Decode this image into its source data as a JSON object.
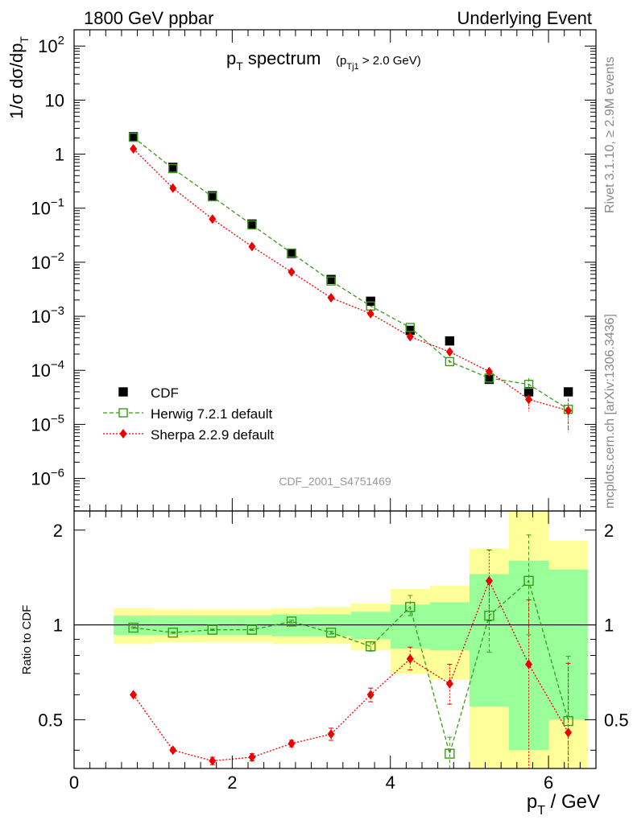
{
  "header": {
    "left": "1800 GeV ppbar",
    "right": "Underlying Event"
  },
  "side_labels": {
    "rivet": "Rivet 3.1.10, ≥ 2.9M events",
    "mcplots": "mcplots.cern.ch [arXiv:1306.3436]"
  },
  "colors": {
    "cdf": "#000000",
    "herwig": "#3a9a1a",
    "sherpa": "#ee0000",
    "band_inner": "#99ff99",
    "band_outer": "#ffff99"
  },
  "chart_data": [
    {
      "type": "scatter",
      "title_main": "p",
      "title_main_sub": "T",
      "title_main_rest": " spectrum",
      "title_cut_open": "(p",
      "title_cut_sub": "Tj1",
      "title_cut_rest": " > 2.0 GeV)",
      "ylabel_main": "1/σ dσ/dp",
      "ylabel_sub": "T",
      "yscale": "log",
      "xlim": [
        0,
        6.6
      ],
      "ylim": [
        2.5e-07,
        200
      ],
      "y_ticks": [
        {
          "value": 1e-06,
          "base": "10",
          "exp": "−6"
        },
        {
          "value": 1e-05,
          "base": "10",
          "exp": "−5"
        },
        {
          "value": 0.0001,
          "base": "10",
          "exp": "−4"
        },
        {
          "value": 0.001,
          "base": "10",
          "exp": "−3"
        },
        {
          "value": 0.01,
          "base": "10",
          "exp": "−2"
        },
        {
          "value": 0.1,
          "base": "10",
          "exp": "−1"
        },
        {
          "value": 1,
          "base": "1",
          "exp": ""
        },
        {
          "value": 10,
          "base": "10",
          "exp": ""
        },
        {
          "value": 100,
          "base": "10",
          "exp": "2"
        }
      ],
      "watermark": "CDF_2001_S4751469",
      "legend_position": "lower-left",
      "series": [
        {
          "name": "CDF",
          "x": [
            0.75,
            1.25,
            1.75,
            2.25,
            2.75,
            3.25,
            3.75,
            4.25,
            4.75,
            5.25,
            5.75,
            6.25
          ],
          "y": [
            2.1,
            0.57,
            0.17,
            0.051,
            0.0145,
            0.0048,
            0.0019,
            0.00055,
            0.00035,
            6.8e-05,
            4e-05,
            4e-05
          ]
        },
        {
          "name": "Herwig 7.2.1 default",
          "x": [
            0.75,
            1.25,
            1.75,
            2.25,
            2.75,
            3.25,
            3.75,
            4.25,
            4.75,
            5.25,
            5.75,
            6.25
          ],
          "y": [
            2.05,
            0.54,
            0.163,
            0.049,
            0.0148,
            0.0045,
            0.00155,
            0.00062,
            0.000145,
            7.2e-05,
            5.5e-05,
            1.9e-05
          ],
          "err_rel": [
            0.01,
            0.01,
            0.01,
            0.01,
            0.02,
            0.02,
            0.03,
            0.05,
            0.08,
            0.15,
            0.3,
            0.6
          ]
        },
        {
          "name": "Sherpa 2.2.9 default",
          "x": [
            0.75,
            1.25,
            1.75,
            2.25,
            2.75,
            3.25,
            3.75,
            4.25,
            4.75,
            5.25,
            5.75,
            6.25
          ],
          "y": [
            1.25,
            0.235,
            0.063,
            0.0195,
            0.0066,
            0.0022,
            0.00112,
            0.00042,
            0.00022,
            9.5e-05,
            2.9e-05,
            1.8e-05
          ],
          "err_rel": [
            0.01,
            0.01,
            0.01,
            0.02,
            0.02,
            0.03,
            0.04,
            0.06,
            0.12,
            0.2,
            0.4,
            0.6
          ]
        }
      ]
    },
    {
      "type": "scatter",
      "ylabel": "Ratio to CDF",
      "xlabel_main": "p",
      "xlabel_sub": "T",
      "xlabel_rest": " / GeV",
      "xlim": [
        0,
        6.6
      ],
      "ylim": [
        0.35,
        2.3
      ],
      "x_ticks": [
        "0",
        "2",
        "4",
        "6"
      ],
      "x_tick_values": [
        0,
        2,
        4,
        6
      ],
      "y_ticks": [
        "0.5",
        "1",
        "2"
      ],
      "y_tick_values": [
        0.5,
        1,
        2
      ],
      "bands": [
        {
          "x0": 0.5,
          "x1": 1.0,
          "inner": [
            0.93,
            1.07
          ],
          "outer": [
            0.87,
            1.13
          ]
        },
        {
          "x0": 1.0,
          "x1": 1.5,
          "inner": [
            0.93,
            1.07
          ],
          "outer": [
            0.88,
            1.12
          ]
        },
        {
          "x0": 1.5,
          "x1": 2.0,
          "inner": [
            0.93,
            1.07
          ],
          "outer": [
            0.88,
            1.12
          ]
        },
        {
          "x0": 2.0,
          "x1": 2.5,
          "inner": [
            0.93,
            1.07
          ],
          "outer": [
            0.88,
            1.12
          ]
        },
        {
          "x0": 2.5,
          "x1": 3.0,
          "inner": [
            0.92,
            1.08
          ],
          "outer": [
            0.87,
            1.13
          ]
        },
        {
          "x0": 3.0,
          "x1": 3.5,
          "inner": [
            0.92,
            1.08
          ],
          "outer": [
            0.87,
            1.14
          ]
        },
        {
          "x0": 3.5,
          "x1": 4.0,
          "inner": [
            0.9,
            1.1
          ],
          "outer": [
            0.83,
            1.17
          ]
        },
        {
          "x0": 4.0,
          "x1": 4.5,
          "inner": [
            0.84,
            1.16
          ],
          "outer": [
            0.7,
            1.3
          ]
        },
        {
          "x0": 4.5,
          "x1": 5.0,
          "inner": [
            0.83,
            1.18
          ],
          "outer": [
            0.67,
            1.33
          ]
        },
        {
          "x0": 5.0,
          "x1": 5.5,
          "inner": [
            0.55,
            1.45
          ],
          "outer": [
            0.35,
            1.75
          ]
        },
        {
          "x0": 5.5,
          "x1": 6.0,
          "inner": [
            0.4,
            1.6
          ],
          "outer": [
            0.35,
            2.3
          ]
        },
        {
          "x0": 6.0,
          "x1": 6.5,
          "inner": [
            0.5,
            1.5
          ],
          "outer": [
            0.35,
            1.85
          ]
        }
      ],
      "series": [
        {
          "name": "Herwig 7.2.1 default",
          "x": [
            0.75,
            1.25,
            1.75,
            2.25,
            2.75,
            3.25,
            3.75,
            4.25,
            4.75,
            5.25,
            5.75,
            6.25
          ],
          "y": [
            0.98,
            0.945,
            0.965,
            0.965,
            1.025,
            0.945,
            0.855,
            1.14,
            0.39,
            1.07,
            1.38,
            0.495
          ],
          "err_lo": [
            0.005,
            0.005,
            0.005,
            0.005,
            0.01,
            0.01,
            0.03,
            0.07,
            0.04,
            0.25,
            0.45,
            0.15
          ],
          "err_hi": [
            0.005,
            0.005,
            0.005,
            0.005,
            0.01,
            0.01,
            0.03,
            0.1,
            0.05,
            0.3,
            0.55,
            0.3
          ]
        },
        {
          "name": "Sherpa 2.2.9 default",
          "x": [
            0.75,
            1.25,
            1.75,
            2.25,
            2.75,
            3.25,
            3.75,
            4.25,
            4.75,
            5.25,
            5.75,
            6.25
          ],
          "y": [
            0.6,
            0.4,
            0.37,
            0.38,
            0.42,
            0.45,
            0.6,
            0.78,
            0.65,
            1.38,
            0.75,
            0.455
          ],
          "err_lo": [
            0.005,
            0.005,
            0.01,
            0.01,
            0.01,
            0.02,
            0.03,
            0.06,
            0.09,
            0.35,
            0.4,
            0.15
          ],
          "err_hi": [
            0.005,
            0.005,
            0.01,
            0.01,
            0.01,
            0.02,
            0.03,
            0.07,
            0.1,
            0.35,
            0.45,
            0.3
          ]
        }
      ]
    }
  ]
}
